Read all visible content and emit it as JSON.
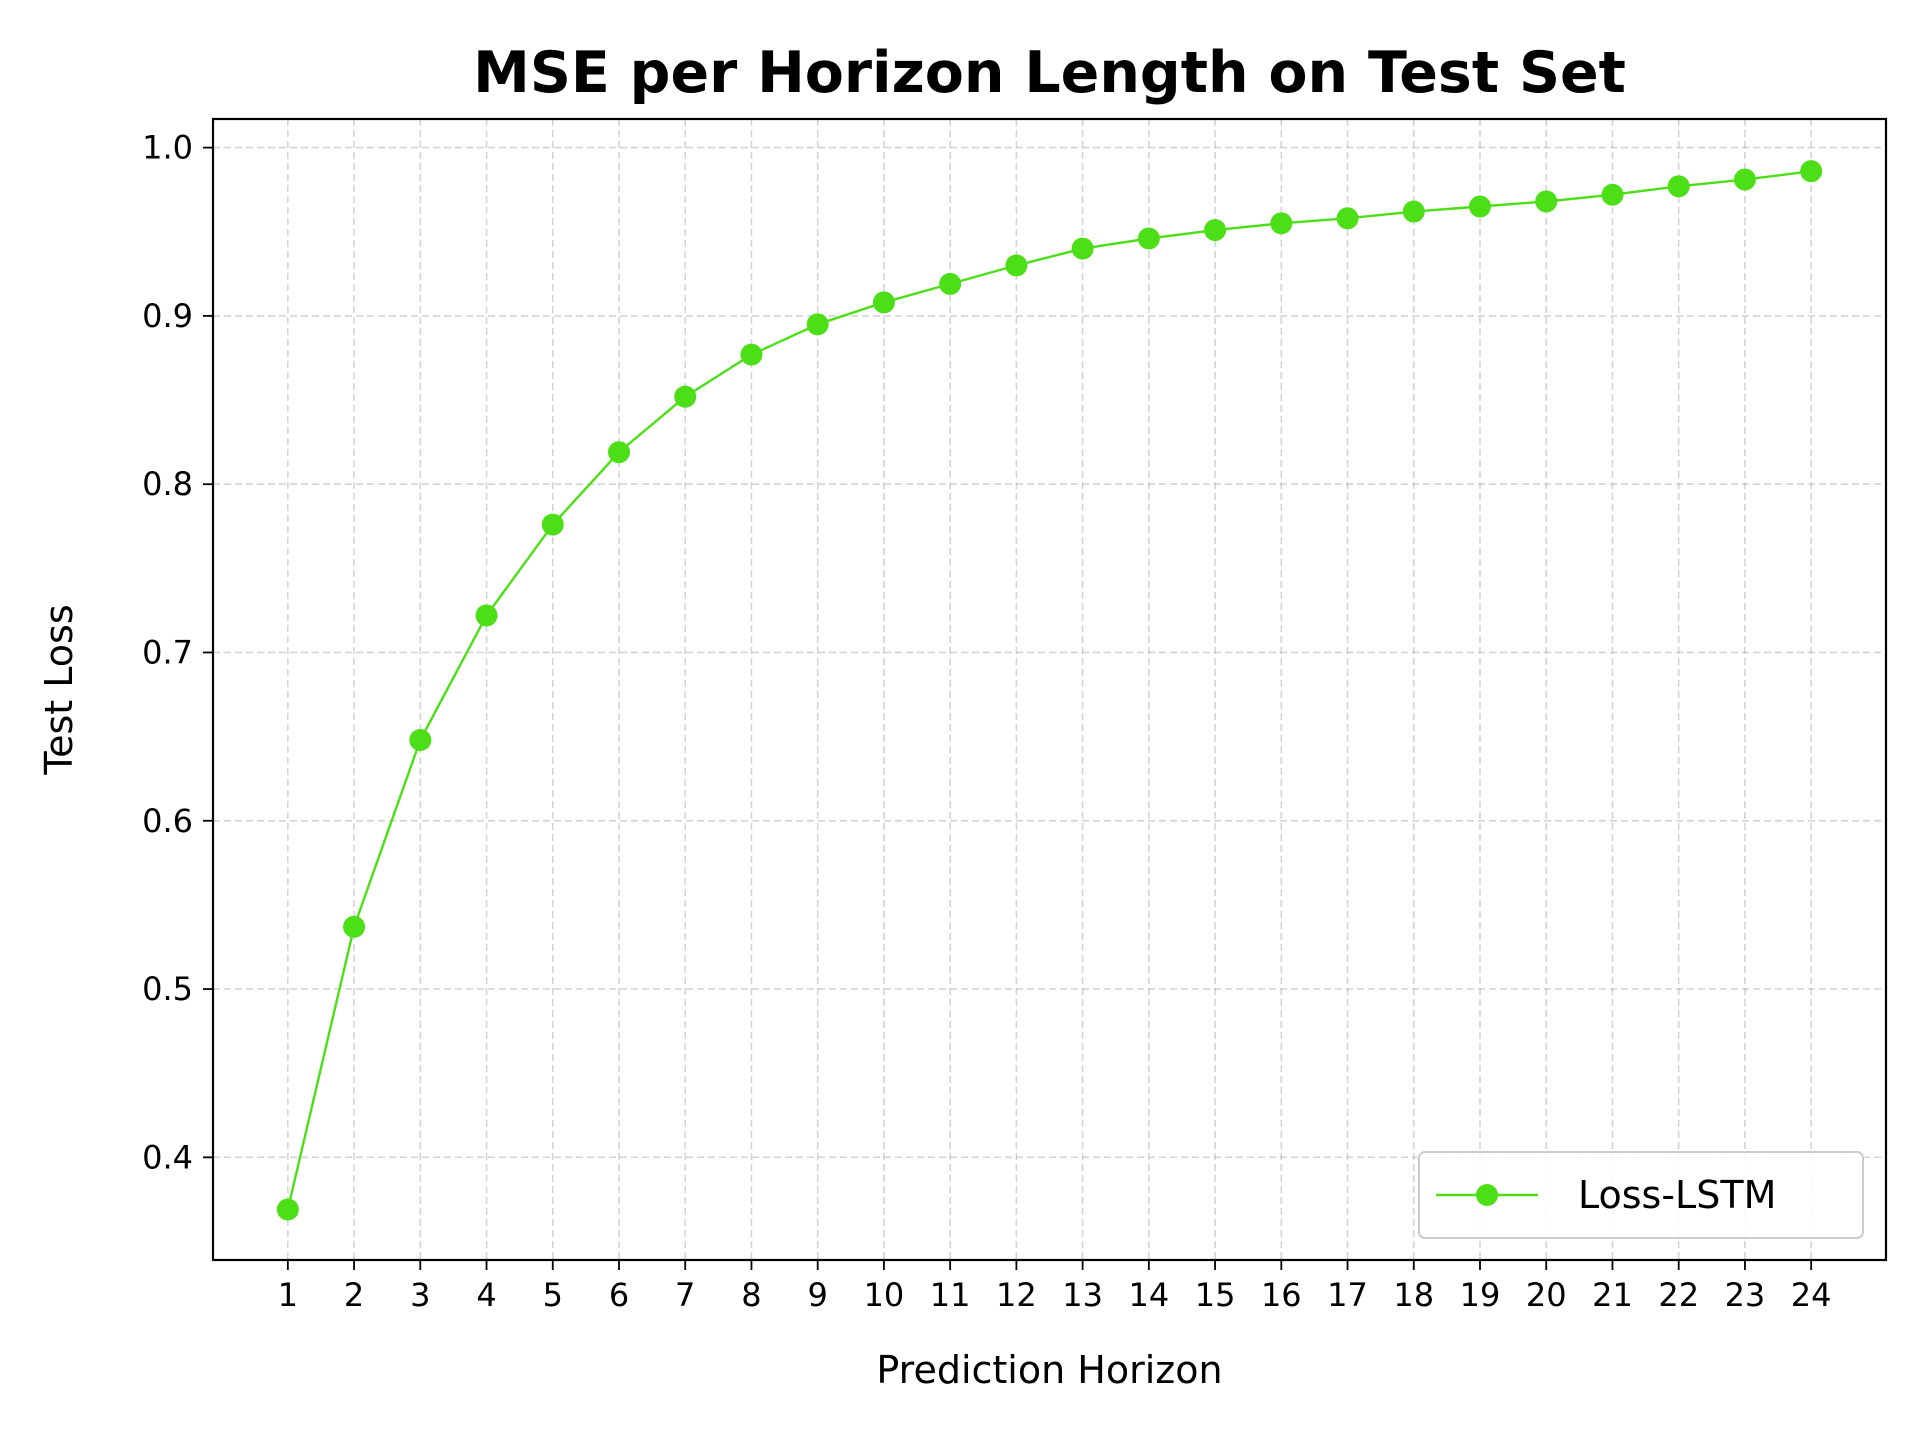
{
  "chart_data": {
    "type": "line",
    "title": "MSE per Horizon Length on Test Set",
    "xlabel": "Prediction Horizon",
    "ylabel": "Test Loss",
    "x": [
      1,
      2,
      3,
      4,
      5,
      6,
      7,
      8,
      9,
      10,
      11,
      12,
      13,
      14,
      15,
      16,
      17,
      18,
      19,
      20,
      21,
      22,
      23,
      24
    ],
    "x_tick_labels": [
      "1",
      "2",
      "3",
      "4",
      "5",
      "6",
      "7",
      "8",
      "9",
      "10",
      "11",
      "12",
      "13",
      "14",
      "15",
      "16",
      "17",
      "18",
      "19",
      "20",
      "21",
      "22",
      "23",
      "24"
    ],
    "y_ticks": [
      0.4,
      0.5,
      0.6,
      0.7,
      0.8,
      0.9,
      1.0
    ],
    "y_tick_labels": [
      "0.4",
      "0.5",
      "0.6",
      "0.7",
      "0.8",
      "0.9",
      "1.0"
    ],
    "xlim": [
      -0.13,
      25.13
    ],
    "ylim": [
      0.339,
      1.017
    ],
    "grid": true,
    "legend_position": "lower-right",
    "series": [
      {
        "name": "Loss-LSTM",
        "color": "#4cdf17",
        "marker": "circle",
        "values": [
          0.369,
          0.537,
          0.648,
          0.722,
          0.776,
          0.819,
          0.852,
          0.877,
          0.895,
          0.908,
          0.919,
          0.93,
          0.94,
          0.946,
          0.951,
          0.955,
          0.958,
          0.962,
          0.965,
          0.968,
          0.972,
          0.977,
          0.981,
          0.986
        ]
      }
    ]
  }
}
